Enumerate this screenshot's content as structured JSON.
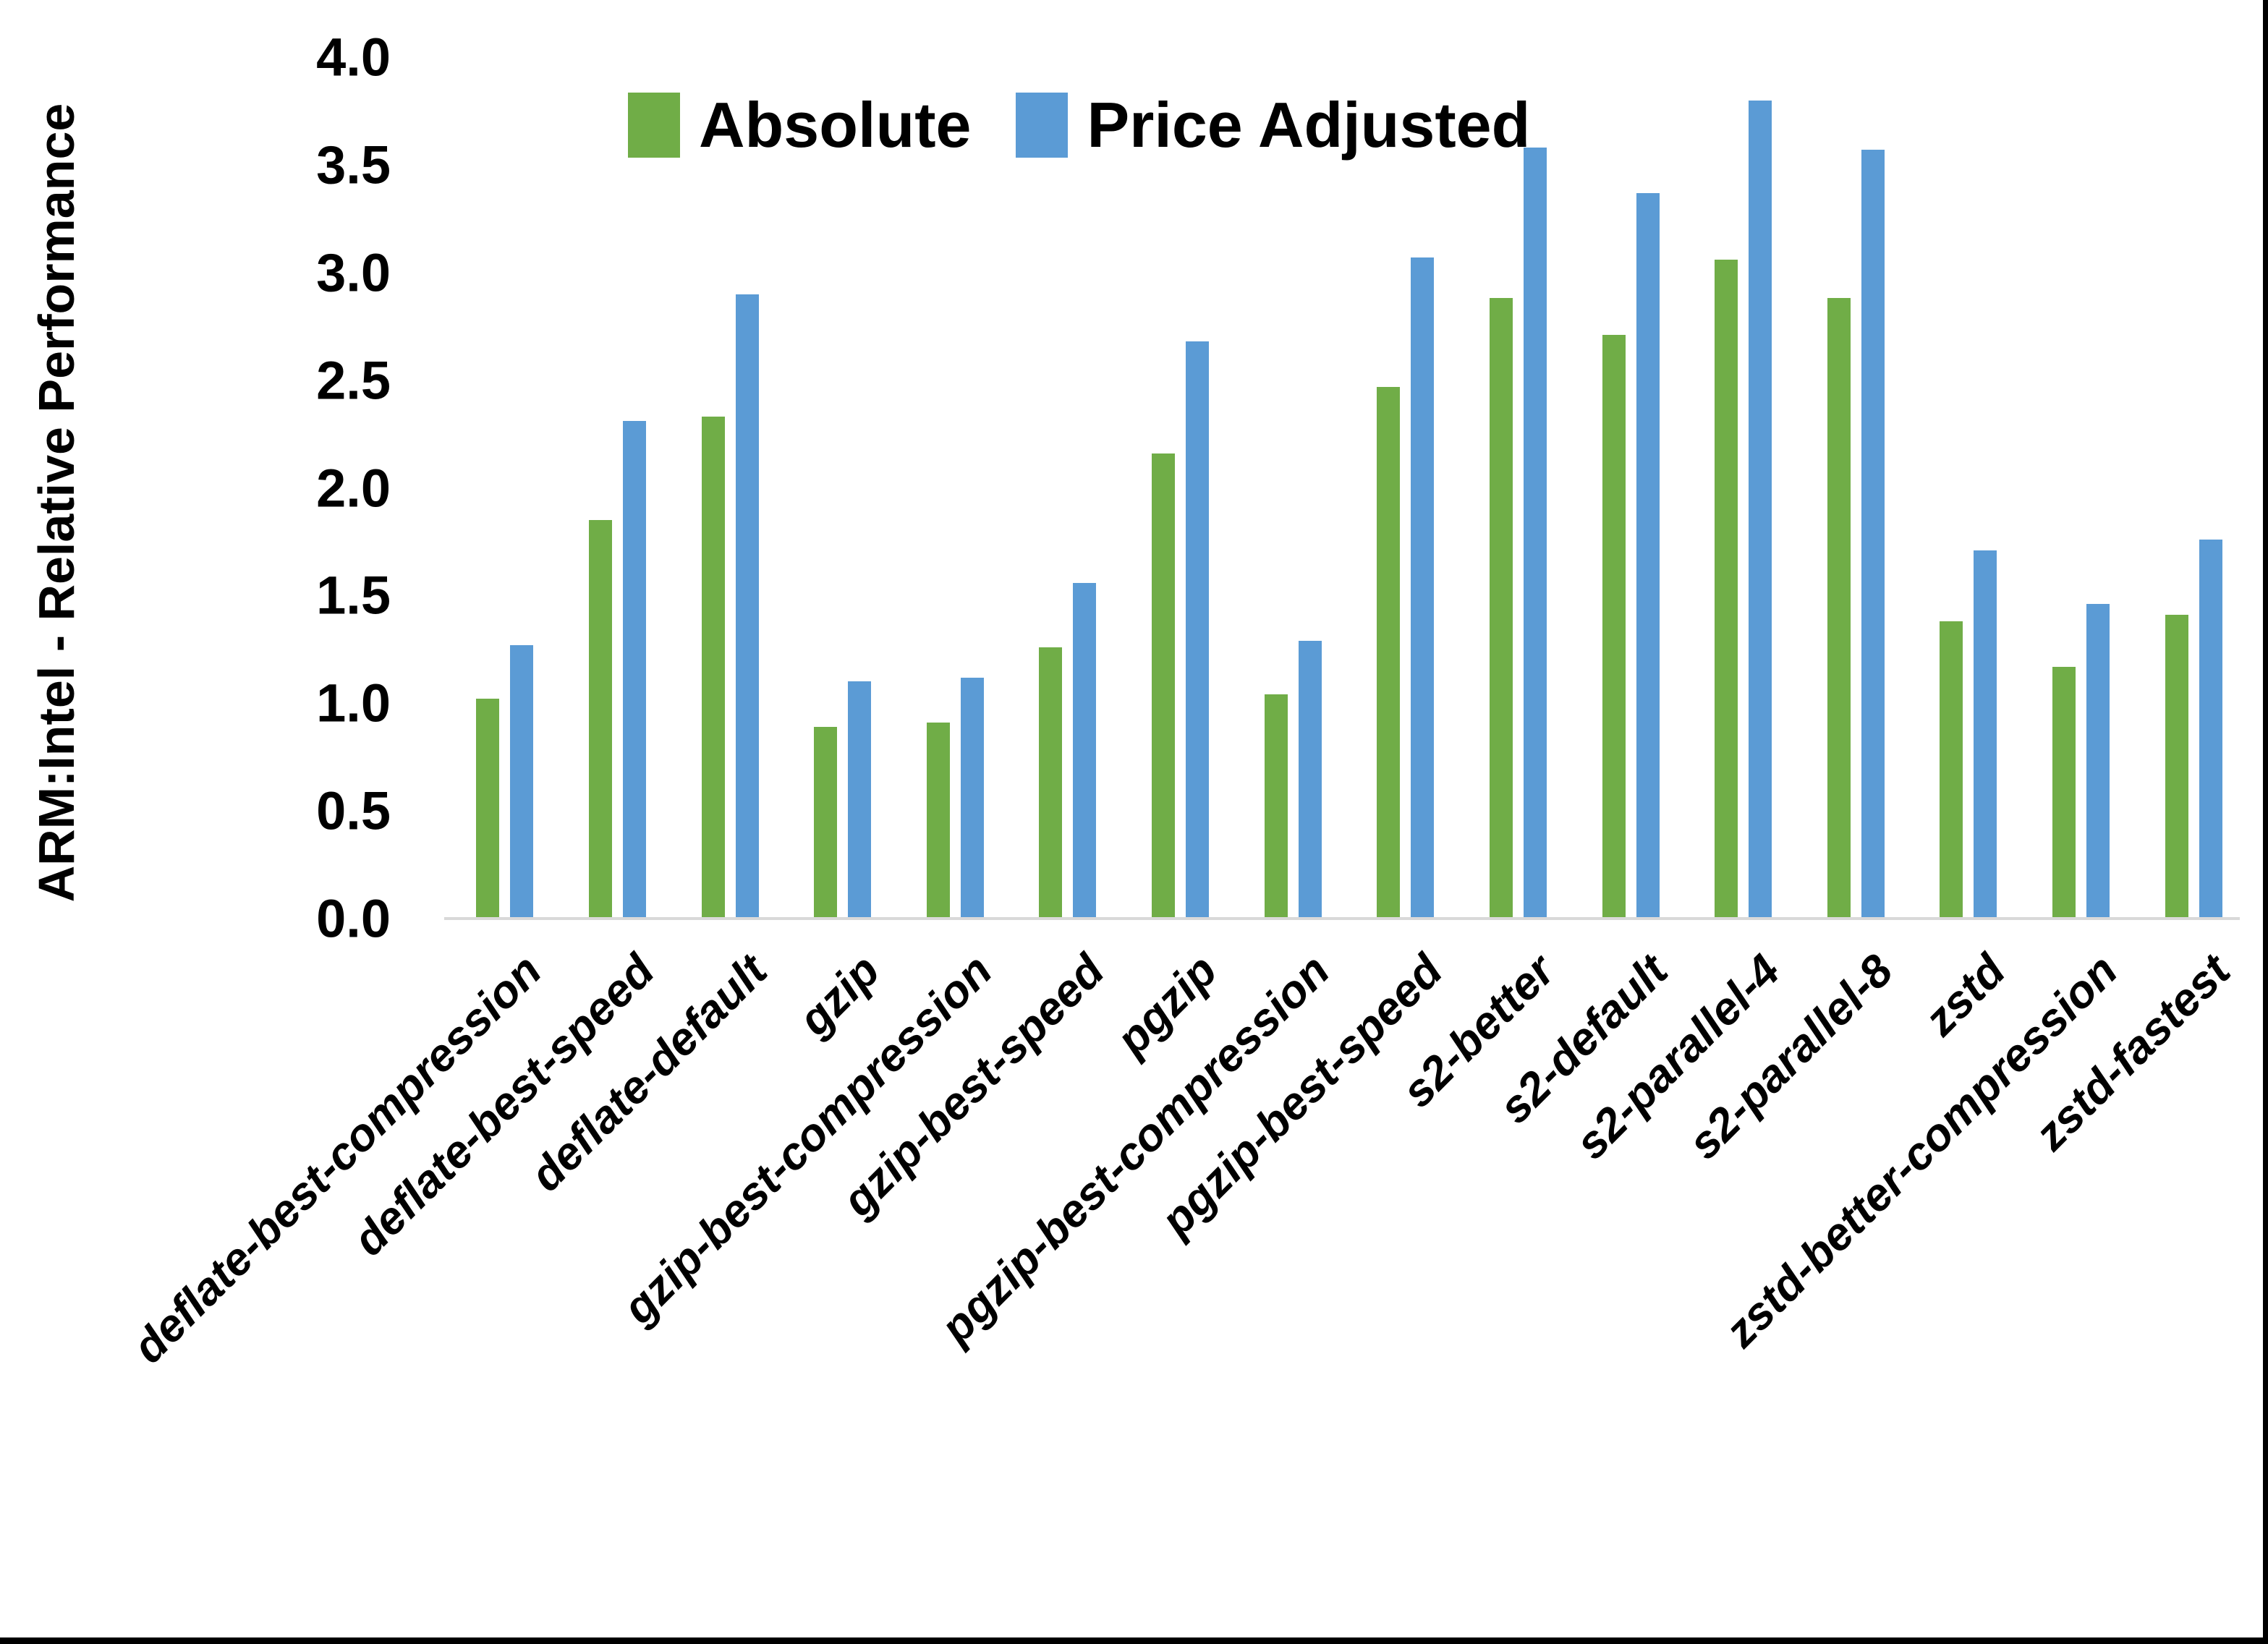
{
  "frame": {
    "background": "#ffffff",
    "border_color": "#000000"
  },
  "chart_data": {
    "type": "bar",
    "title": "",
    "xlabel": "",
    "ylabel": "ARM:Intel - Relative Performance",
    "ylim": [
      0,
      4.0
    ],
    "ytick_step": 0.5,
    "ytick_labels": [
      "4.0",
      "3.5",
      "3.0",
      "2.5",
      "2.0",
      "1.5",
      "1.0",
      "0.5",
      "0.0"
    ],
    "grid": false,
    "legend_position": "top-center",
    "axis_line_color": "#d9d9d9",
    "categories": [
      "deflate-best-compression",
      "deflate-best-speed",
      "deflate-default",
      "gzip",
      "gzip-best-compression",
      "gzip-best-speed",
      "pgzip",
      "pgzip-best-compression",
      "pgzip-best-speed",
      "s2-better",
      "s2-default",
      "s2-parallel-4",
      "s2-parallel-8",
      "zstd",
      "zstd-better-compression",
      "zstd-fastest"
    ],
    "series": [
      {
        "name": "Absolute",
        "color": "#70ad47",
        "values": [
          1.02,
          1.85,
          2.33,
          0.89,
          0.91,
          1.26,
          2.16,
          1.04,
          2.47,
          2.88,
          2.71,
          3.06,
          2.88,
          1.38,
          1.17,
          1.41
        ]
      },
      {
        "name": "Price Adjusted",
        "color": "#5b9bd5",
        "values": [
          1.27,
          2.31,
          2.9,
          1.1,
          1.12,
          1.56,
          2.68,
          1.29,
          3.07,
          3.58,
          3.37,
          3.8,
          3.57,
          1.71,
          1.46,
          1.76
        ]
      }
    ]
  }
}
